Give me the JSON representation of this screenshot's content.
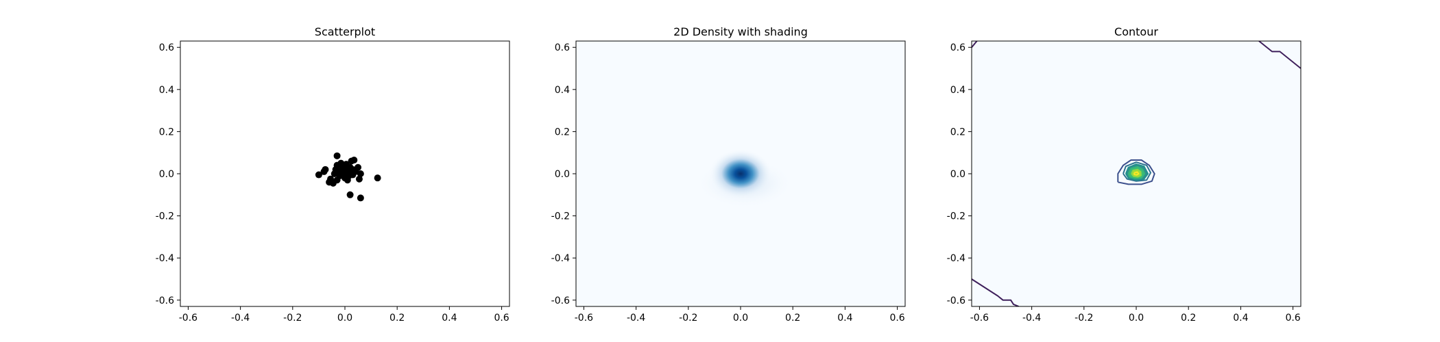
{
  "chart_data": [
    {
      "type": "scatter",
      "title": "Scatterplot",
      "xlim": [
        -0.63,
        0.63
      ],
      "ylim": [
        -0.63,
        0.63
      ],
      "xticks": [
        "-0.6",
        "-0.4",
        "-0.2",
        "0.0",
        "0.2",
        "0.4",
        "0.6"
      ],
      "yticks": [
        "-0.6",
        "-0.4",
        "-0.2",
        "0.0",
        "0.2",
        "0.4",
        "0.6"
      ],
      "grid": false,
      "marker_color": "#000000",
      "points": [
        [
          -0.03,
          0.085
        ],
        [
          -0.1,
          -0.005
        ],
        [
          -0.08,
          0.01
        ],
        [
          -0.075,
          0.02
        ],
        [
          -0.06,
          -0.04
        ],
        [
          -0.045,
          -0.045
        ],
        [
          -0.03,
          -0.03
        ],
        [
          -0.04,
          0.0
        ],
        [
          -0.035,
          0.02
        ],
        [
          -0.03,
          0.04
        ],
        [
          -0.02,
          0.01
        ],
        [
          -0.02,
          -0.01
        ],
        [
          -0.01,
          0.03
        ],
        [
          -0.01,
          0.0
        ],
        [
          0.0,
          0.02
        ],
        [
          0.0,
          -0.02
        ],
        [
          0.005,
          0.045
        ],
        [
          0.01,
          0.01
        ],
        [
          0.015,
          -0.01
        ],
        [
          0.02,
          0.03
        ],
        [
          0.025,
          0.06
        ],
        [
          0.03,
          -0.005
        ],
        [
          0.035,
          0.065
        ],
        [
          0.04,
          0.01
        ],
        [
          0.05,
          0.03
        ],
        [
          0.055,
          -0.025
        ],
        [
          0.06,
          0.0
        ],
        [
          -0.055,
          -0.025
        ],
        [
          0.02,
          -0.1
        ],
        [
          0.06,
          -0.115
        ],
        [
          0.125,
          -0.02
        ],
        [
          0.01,
          -0.03
        ],
        [
          -0.015,
          0.05
        ],
        [
          0.0,
          0.005
        ],
        [
          0.03,
          0.02
        ]
      ]
    },
    {
      "type": "heatmap",
      "title": "2D Density with shading",
      "xlim": [
        -0.63,
        0.63
      ],
      "ylim": [
        -0.63,
        0.63
      ],
      "xticks": [
        "-0.6",
        "-0.4",
        "-0.2",
        "0.0",
        "0.2",
        "0.4",
        "0.6"
      ],
      "yticks": [
        "-0.6",
        "-0.4",
        "-0.2",
        "0.0",
        "0.2",
        "0.4",
        "0.6"
      ],
      "colormap": "Blues",
      "background_color": "#f7fbff",
      "peak_color": "#08306b",
      "peak": [
        0.0,
        0.0
      ]
    },
    {
      "type": "contour",
      "title": "Contour",
      "xlim": [
        -0.63,
        0.63
      ],
      "ylim": [
        -0.63,
        0.63
      ],
      "xticks": [
        "-0.6",
        "-0.4",
        "-0.2",
        "0.0",
        "0.2",
        "0.4",
        "0.6"
      ],
      "yticks": [
        "-0.6",
        "-0.4",
        "-0.2",
        "0.0",
        "0.2",
        "0.4",
        "0.6"
      ],
      "colormap": "viridis",
      "background_color": "#f7fbff",
      "contours": [
        {
          "level": 1,
          "color": "#3e1f5b",
          "points": [
            [
              -0.63,
              -0.5
            ],
            [
              -0.53,
              -0.58
            ],
            [
              -0.51,
              -0.6
            ],
            [
              -0.48,
              -0.6
            ],
            [
              -0.47,
              -0.62
            ],
            [
              -0.45,
              -0.63
            ]
          ]
        },
        {
          "level": 1,
          "color": "#3e1f5b",
          "points": [
            [
              -0.63,
              0.6
            ],
            [
              -0.61,
              0.63
            ]
          ]
        },
        {
          "level": 1,
          "color": "#3e1f5b",
          "points": [
            [
              0.47,
              0.63
            ],
            [
              0.52,
              0.58
            ],
            [
              0.55,
              0.58
            ],
            [
              0.63,
              0.5
            ]
          ]
        },
        {
          "level": 2,
          "color": "#3b4f8c",
          "points": [
            [
              -0.07,
              -0.04
            ],
            [
              -0.07,
              0.0
            ],
            [
              -0.05,
              0.04
            ],
            [
              -0.02,
              0.065
            ],
            [
              0.02,
              0.065
            ],
            [
              0.05,
              0.04
            ],
            [
              0.07,
              0.0
            ],
            [
              0.06,
              -0.035
            ],
            [
              0.02,
              -0.05
            ],
            [
              -0.03,
              -0.05
            ],
            [
              -0.07,
              -0.04
            ]
          ]
        },
        {
          "level": 3,
          "color": "#2c728e",
          "points": [
            [
              -0.05,
              0.0
            ],
            [
              -0.04,
              0.035
            ],
            [
              0.0,
              0.055
            ],
            [
              0.04,
              0.04
            ],
            [
              0.055,
              0.005
            ],
            [
              0.04,
              -0.03
            ],
            [
              0.0,
              -0.035
            ],
            [
              -0.035,
              -0.025
            ],
            [
              -0.05,
              0.0
            ]
          ]
        },
        {
          "level": 4,
          "color": "#21918c",
          "points": [
            [
              -0.04,
              0.0
            ],
            [
              -0.03,
              0.03
            ],
            [
              0.0,
              0.045
            ],
            [
              0.03,
              0.035
            ],
            [
              0.045,
              0.0
            ],
            [
              0.03,
              -0.025
            ],
            [
              0.0,
              -0.03
            ],
            [
              -0.03,
              -0.02
            ],
            [
              -0.04,
              0.0
            ]
          ]
        },
        {
          "level": 5,
          "color": "#35b779",
          "points": [
            [
              -0.03,
              0.0
            ],
            [
              -0.02,
              0.025
            ],
            [
              0.005,
              0.033
            ],
            [
              0.025,
              0.02
            ],
            [
              0.032,
              0.0
            ],
            [
              0.02,
              -0.02
            ],
            [
              -0.005,
              -0.022
            ],
            [
              -0.025,
              -0.014
            ],
            [
              -0.03,
              0.0
            ]
          ]
        },
        {
          "level": 6,
          "color": "#90d743",
          "points": [
            [
              -0.018,
              0.0
            ],
            [
              -0.012,
              0.016
            ],
            [
              0.005,
              0.02
            ],
            [
              0.017,
              0.01
            ],
            [
              0.018,
              -0.008
            ],
            [
              0.006,
              -0.015
            ],
            [
              -0.01,
              -0.012
            ],
            [
              -0.018,
              0.0
            ]
          ]
        },
        {
          "level": 7,
          "color": "#fde725",
          "points": [
            [
              -0.008,
              0.004
            ],
            [
              0.004,
              0.008
            ],
            [
              0.009,
              0.0
            ],
            [
              0.002,
              -0.006
            ],
            [
              -0.007,
              -0.004
            ],
            [
              -0.008,
              0.004
            ]
          ]
        }
      ],
      "fill_levels": [
        {
          "color": "#2f8e8c",
          "points": [
            [
              -0.04,
              0.0
            ],
            [
              -0.03,
              0.03
            ],
            [
              0.0,
              0.045
            ],
            [
              0.03,
              0.035
            ],
            [
              0.045,
              0.0
            ],
            [
              0.03,
              -0.025
            ],
            [
              0.0,
              -0.03
            ],
            [
              -0.03,
              -0.02
            ],
            [
              -0.04,
              0.0
            ]
          ]
        },
        {
          "color": "#3dbc74",
          "points": [
            [
              -0.03,
              0.0
            ],
            [
              -0.02,
              0.025
            ],
            [
              0.005,
              0.033
            ],
            [
              0.025,
              0.02
            ],
            [
              0.032,
              0.0
            ],
            [
              0.02,
              -0.02
            ],
            [
              -0.005,
              -0.022
            ],
            [
              -0.025,
              -0.014
            ],
            [
              -0.03,
              0.0
            ]
          ]
        },
        {
          "color": "#a5db36",
          "points": [
            [
              -0.018,
              0.0
            ],
            [
              -0.012,
              0.016
            ],
            [
              0.005,
              0.02
            ],
            [
              0.017,
              0.01
            ],
            [
              0.018,
              -0.008
            ],
            [
              0.006,
              -0.015
            ],
            [
              -0.01,
              -0.012
            ],
            [
              -0.018,
              0.0
            ]
          ]
        }
      ]
    }
  ]
}
